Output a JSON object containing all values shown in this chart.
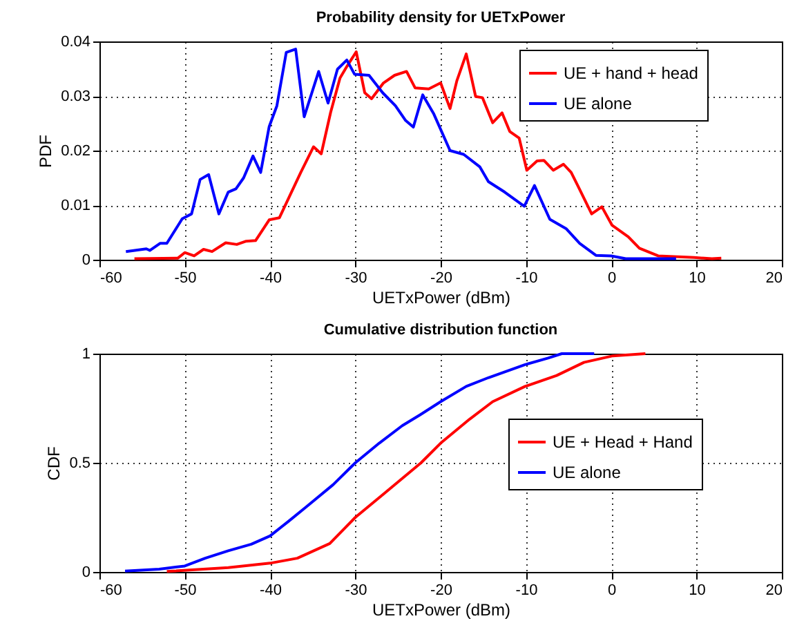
{
  "chart_data": [
    {
      "type": "line",
      "title": "Probability density for UETxPower",
      "xlabel": "UETxPower (dBm)",
      "ylabel": "PDF",
      "xlim": [
        -60,
        20
      ],
      "xticks": [
        -60,
        -50,
        -40,
        -30,
        -20,
        -10,
        0,
        10,
        20
      ],
      "ylim": [
        0,
        0.04
      ],
      "yticks": [
        0,
        0.01,
        0.02,
        0.03,
        0.04
      ],
      "grid": true,
      "legend": "top right",
      "series": [
        {
          "name": "UE + hand + head",
          "color": "#ff0000",
          "x": [
            -55.9,
            -50.8,
            -50,
            -48.9,
            -47.8,
            -46.8,
            -45.2,
            -43.9,
            -42.8,
            -41.7,
            -40.1,
            -38.9,
            -36.4,
            -34.9,
            -34.0,
            -32.9,
            -31.8,
            -31.0,
            -29.9,
            -28.9,
            -28.1,
            -26.7,
            -25.4,
            -24.0,
            -23.0,
            -21.4,
            -20,
            -18.9,
            -18.1,
            -17.0,
            -15.9,
            -15.1,
            -13.9,
            -12.8,
            -11.9,
            -10.8,
            -9.9,
            -8.7,
            -7.9,
            -6.8,
            -5.6,
            -4.7,
            -3.9,
            -2.3,
            -1.1,
            0.1,
            2.0,
            3.3,
            5.5,
            9.7,
            11.8,
            12.9
          ],
          "values": [
            0.0002,
            0.0003,
            0.0013,
            0.0007,
            0.0019,
            0.0015,
            0.0031,
            0.0028,
            0.0034,
            0.0035,
            0.0073,
            0.0077,
            0.016,
            0.0207,
            0.0194,
            0.027,
            0.0333,
            0.0354,
            0.0381,
            0.0306,
            0.0295,
            0.0324,
            0.0338,
            0.0345,
            0.0315,
            0.0313,
            0.0324,
            0.0277,
            0.0328,
            0.0377,
            0.0299,
            0.0297,
            0.0251,
            0.0269,
            0.0235,
            0.0223,
            0.0164,
            0.0181,
            0.0182,
            0.0164,
            0.0175,
            0.016,
            0.0135,
            0.0084,
            0.0097,
            0.0063,
            0.0042,
            0.0021,
            0.0007,
            0.0004,
            0.0002,
            0.0003
          ]
        },
        {
          "name": "UE alone",
          "color": "#0000ff",
          "x": [
            -56.9,
            -54.5,
            -54.1,
            -52.9,
            -52.1,
            -50.3,
            -49.2,
            -48.2,
            -47.2,
            -46.0,
            -44.9,
            -44.0,
            -43.1,
            -42.0,
            -41.1,
            -40.1,
            -39.2,
            -38.1,
            -37.0,
            -36.0,
            -34.3,
            -33.2,
            -32.1,
            -31.0,
            -30.1,
            -28.4,
            -26.8,
            -25.3,
            -24.1,
            -23.2,
            -22.1,
            -20.8,
            -18.9,
            -17.3,
            -15.4,
            -14.4,
            -12.5,
            -10.2,
            -9.0,
            -7.2,
            -5.3,
            -3.7,
            -1.8,
            0,
            1.7,
            7.6
          ],
          "values": [
            0.0015,
            0.002,
            0.0017,
            0.003,
            0.003,
            0.0075,
            0.0084,
            0.0147,
            0.0156,
            0.0084,
            0.0124,
            0.013,
            0.015,
            0.019,
            0.016,
            0.0244,
            0.0282,
            0.038,
            0.0386,
            0.0262,
            0.0345,
            0.0287,
            0.0349,
            0.0366,
            0.034,
            0.0338,
            0.0306,
            0.0282,
            0.0255,
            0.0243,
            0.0302,
            0.0267,
            0.02,
            0.0193,
            0.017,
            0.0143,
            0.0124,
            0.0098,
            0.0136,
            0.0074,
            0.0057,
            0.003,
            0.0008,
            0.0007,
            0.0002,
            0.0002
          ]
        }
      ]
    },
    {
      "type": "line",
      "title": "Cumulative distribution function",
      "xlabel": "UETxPower (dBm)",
      "ylabel": "CDF",
      "xlim": [
        -60,
        20
      ],
      "xticks": [
        -60,
        -50,
        -40,
        -30,
        -20,
        -10,
        0,
        10,
        20
      ],
      "ylim": [
        0,
        1
      ],
      "yticks": [
        0,
        0.5,
        1
      ],
      "grid": true,
      "legend": "right",
      "series": [
        {
          "name": "UE + Head + Hand",
          "color": "#ff0000",
          "x": [
            -52.1,
            -44.9,
            -40,
            -36.8,
            -33,
            -30,
            -26.6,
            -22.3,
            -20,
            -16.6,
            -13.9,
            -10.1,
            -6.4,
            -3.2,
            0.2,
            4
          ],
          "values": [
            0.002,
            0.02,
            0.04,
            0.063,
            0.13,
            0.25,
            0.36,
            0.5,
            0.59,
            0.7,
            0.78,
            0.85,
            0.9,
            0.96,
            0.99,
            1
          ]
        },
        {
          "name": "UE alone",
          "color": "#0000ff",
          "x": [
            -57,
            -53,
            -50,
            -47.6,
            -44.9,
            -42.2,
            -40,
            -37.9,
            -35.7,
            -32.6,
            -30,
            -27.2,
            -24.5,
            -22.4,
            -20,
            -17,
            -14.4,
            -10.1,
            -7.4,
            -5.8,
            -2
          ],
          "values": [
            0.004,
            0.013,
            0.027,
            0.063,
            0.097,
            0.127,
            0.165,
            0.23,
            0.3,
            0.4,
            0.5,
            0.59,
            0.67,
            0.72,
            0.78,
            0.85,
            0.89,
            0.95,
            0.98,
            1,
            1
          ]
        }
      ]
    }
  ]
}
